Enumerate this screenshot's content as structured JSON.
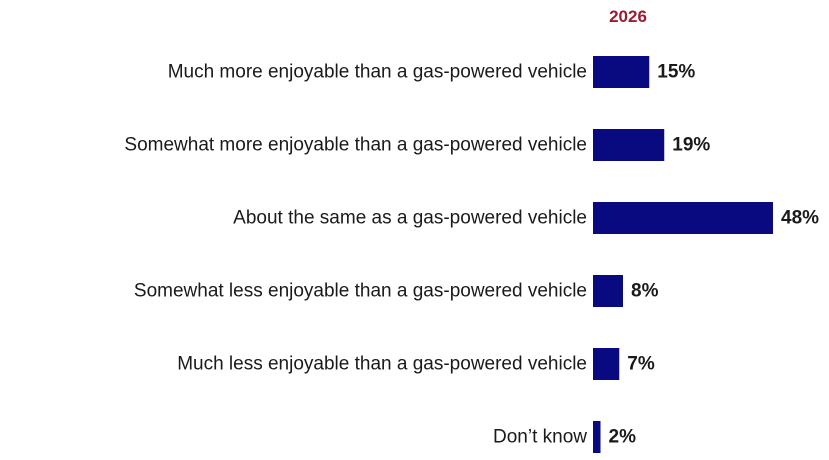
{
  "chart_data": {
    "type": "bar",
    "orientation": "horizontal",
    "series": [
      {
        "name": "2026",
        "values": [
          15,
          19,
          48,
          8,
          7,
          2
        ]
      }
    ],
    "categories": [
      "Much more enjoyable than a gas-powered vehicle",
      "Somewhat more enjoyable than a gas-powered vehicle",
      "About the same as a gas-powered vehicle",
      "Somewhat less enjoyable than a gas-powered vehicle",
      "Much less enjoyable than a gas-powered vehicle",
      "Don’t know"
    ],
    "value_labels": [
      "15%",
      "19%",
      "48%",
      "8%",
      "7%",
      "2%"
    ],
    "xlim": [
      0,
      100
    ],
    "grid": false,
    "legend": "none",
    "colors": {
      "bar": "#0a0a80",
      "header": "#9b1b30",
      "text": "#1a1a1a"
    }
  }
}
